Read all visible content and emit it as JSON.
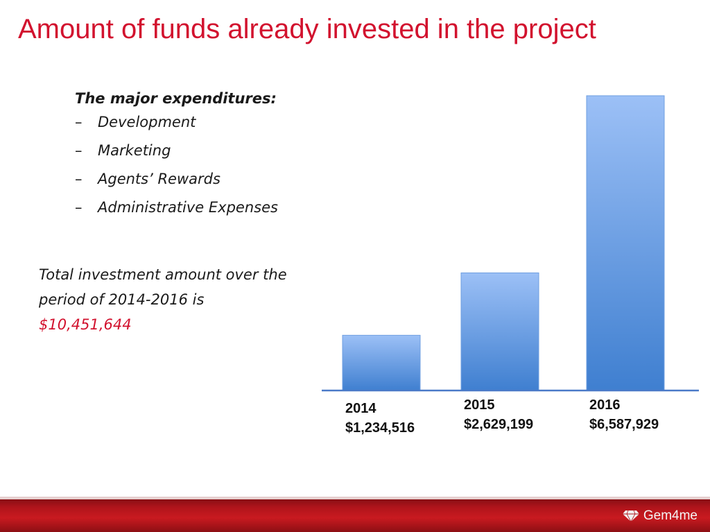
{
  "slide": {
    "title": "Amount of funds already invested in the project",
    "list_heading": "The major expenditures:",
    "items": [
      {
        "label": "Development"
      },
      {
        "label": "Marketing"
      },
      {
        "label": "Agents’ Rewards"
      },
      {
        "label": "Administrative Expenses"
      }
    ],
    "dash": "–",
    "total_text": "Total investment amount over the period of 2014-2016 is",
    "total_amount": "$10,451,644",
    "brand": "Gem4me"
  },
  "chart_data": {
    "type": "bar",
    "categories": [
      "2014",
      "2015",
      "2016"
    ],
    "values": [
      1234516,
      2629199,
      6587929
    ],
    "value_labels": [
      "$1,234,516",
      "$2,629,199",
      "$6,587,929"
    ],
    "title": "",
    "xlabel": "",
    "ylabel": "",
    "ylim": [
      0,
      6587929
    ],
    "grid": false,
    "legend": "none",
    "colors": {
      "bar_top": "#9cc0f6",
      "bar_bottom": "#3f7fd0",
      "axis": "#4a7ac8"
    }
  }
}
